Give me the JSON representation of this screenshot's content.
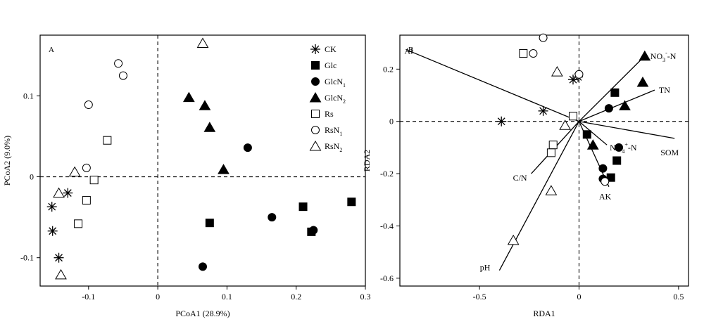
{
  "figure": {
    "panels": [
      {
        "id": "A",
        "label": "A",
        "xlabel": "PCoA1 (28.9%)",
        "ylabel": "PCoA2 (9.0%)"
      },
      {
        "id": "B",
        "label": "B",
        "xlabel": "RDA1",
        "ylabel": "RDA2"
      }
    ]
  },
  "legend": [
    {
      "name": "CK",
      "sub": "",
      "marker": "asterisk"
    },
    {
      "name": "Glc",
      "sub": "",
      "marker": "square-filled"
    },
    {
      "name": "GlcN",
      "sub": "1",
      "marker": "circle-filled"
    },
    {
      "name": "GlcN",
      "sub": "2",
      "marker": "triangle-filled"
    },
    {
      "name": "Rs",
      "sub": "",
      "marker": "square-open"
    },
    {
      "name": "RsN",
      "sub": "1",
      "marker": "circle-open"
    },
    {
      "name": "RsN",
      "sub": "2",
      "marker": "triangle-open"
    }
  ],
  "chart_data": [
    {
      "id": "A",
      "type": "scatter",
      "title": "A",
      "xlabel": "PCoA1 (28.9%)",
      "ylabel": "PCoA2 (9.0%)",
      "xlim": [
        -0.17,
        0.3
      ],
      "ylim": [
        -0.135,
        0.175
      ],
      "xticks": [
        -0.1,
        0,
        0.1,
        0.2,
        0.3
      ],
      "xtick_labels": [
        "-0.1",
        "0",
        "0.1",
        "0.2",
        "0.3"
      ],
      "yticks": [
        -0.1,
        0,
        0.1
      ],
      "ytick_labels": [
        "-0.1",
        "0",
        "0.1"
      ],
      "reference_lines": {
        "x": 0,
        "y": 0,
        "style": "dashed"
      },
      "legend_position": "top-right",
      "series": [
        {
          "name": "CK",
          "marker": "asterisk",
          "points": [
            [
              -0.13,
              -0.02
            ],
            [
              -0.153,
              -0.037
            ],
            [
              -0.152,
              -0.067
            ],
            [
              -0.143,
              -0.1
            ]
          ]
        },
        {
          "name": "Glc",
          "marker": "square-filled",
          "points": [
            [
              0.075,
              -0.057
            ],
            [
              0.21,
              -0.037
            ],
            [
              0.222,
              -0.068
            ],
            [
              0.28,
              -0.031
            ]
          ]
        },
        {
          "name": "GlcN1",
          "marker": "circle-filled",
          "points": [
            [
              0.13,
              0.036
            ],
            [
              0.165,
              -0.05
            ],
            [
              0.225,
              -0.066
            ],
            [
              0.065,
              -0.111
            ]
          ]
        },
        {
          "name": "GlcN2",
          "marker": "triangle-filled",
          "points": [
            [
              0.045,
              0.098
            ],
            [
              0.068,
              0.088
            ],
            [
              0.075,
              0.061
            ],
            [
              0.095,
              0.009
            ]
          ]
        },
        {
          "name": "Rs",
          "marker": "square-open",
          "points": [
            [
              -0.073,
              0.045
            ],
            [
              -0.092,
              -0.004
            ],
            [
              -0.103,
              -0.029
            ],
            [
              -0.115,
              -0.058
            ]
          ]
        },
        {
          "name": "RsN1",
          "marker": "circle-open",
          "points": [
            [
              -0.057,
              0.14
            ],
            [
              -0.05,
              0.125
            ],
            [
              -0.1,
              0.089
            ],
            [
              -0.103,
              0.011
            ]
          ]
        },
        {
          "name": "RsN2",
          "marker": "triangle-open",
          "points": [
            [
              0.065,
              0.165
            ],
            [
              -0.12,
              0.006
            ],
            [
              -0.143,
              -0.02
            ],
            [
              -0.14,
              -0.121
            ]
          ]
        }
      ]
    },
    {
      "id": "B",
      "type": "scatter",
      "title": "B",
      "xlabel": "RDA1",
      "ylabel": "RDA2",
      "xlim": [
        -0.9,
        0.55
      ],
      "ylim": [
        -0.63,
        0.33
      ],
      "xticks": [
        -0.5,
        0,
        0.5
      ],
      "xtick_labels": [
        "-0.5",
        "0",
        "0.5"
      ],
      "yticks": [
        -0.6,
        -0.4,
        -0.2,
        0,
        0.2
      ],
      "ytick_labels": [
        "-0.6",
        "-0.4",
        "-0.2",
        "0",
        "0.2"
      ],
      "reference_lines": {
        "x": 0,
        "y": 0,
        "style": "dashed"
      },
      "vectors": [
        {
          "name": "Al",
          "x": -0.87,
          "y": 0.275
        },
        {
          "name": "NO3-N",
          "label": "NO",
          "sub": "3",
          "sup": "-",
          "suffix": "-N",
          "x": 0.33,
          "y": 0.25
        },
        {
          "name": "TN",
          "x": 0.38,
          "y": 0.12
        },
        {
          "name": "NH4+-N",
          "label": "NH",
          "sub": "4",
          "sup": "+",
          "suffix": "-N",
          "x": 0.14,
          "y": -0.09
        },
        {
          "name": "SOM",
          "x": 0.48,
          "y": -0.065
        },
        {
          "name": "AK",
          "x": 0.15,
          "y": -0.25
        },
        {
          "name": "C/N",
          "x": -0.24,
          "y": -0.2
        },
        {
          "name": "pH",
          "x": -0.4,
          "y": -0.57
        }
      ],
      "series": [
        {
          "name": "CK",
          "marker": "asterisk",
          "points": [
            [
              -0.39,
              0.0
            ],
            [
              -0.18,
              0.04
            ],
            [
              -0.03,
              0.16
            ],
            [
              -0.005,
              0.17
            ]
          ]
        },
        {
          "name": "Glc",
          "marker": "square-filled",
          "points": [
            [
              0.18,
              0.11
            ],
            [
              0.04,
              -0.05
            ],
            [
              0.19,
              -0.15
            ],
            [
              0.16,
              -0.215
            ]
          ]
        },
        {
          "name": "GlcN1",
          "marker": "circle-filled",
          "points": [
            [
              0.15,
              0.05
            ],
            [
              0.2,
              -0.1
            ],
            [
              0.12,
              -0.18
            ],
            [
              0.12,
              -0.22
            ]
          ]
        },
        {
          "name": "GlcN2",
          "marker": "triangle-filled",
          "points": [
            [
              0.33,
              0.25
            ],
            [
              0.32,
              0.15
            ],
            [
              0.23,
              0.06
            ],
            [
              0.07,
              -0.09
            ]
          ]
        },
        {
          "name": "Rs",
          "marker": "square-open",
          "points": [
            [
              -0.28,
              0.26
            ],
            [
              -0.03,
              0.02
            ],
            [
              -0.13,
              -0.09
            ],
            [
              -0.14,
              -0.12
            ]
          ]
        },
        {
          "name": "RsN1",
          "marker": "circle-open",
          "points": [
            [
              -0.18,
              0.32
            ],
            [
              -0.23,
              0.26
            ],
            [
              0.0,
              0.18
            ],
            [
              0.13,
              -0.23
            ]
          ]
        },
        {
          "name": "RsN2",
          "marker": "triangle-open",
          "points": [
            [
              -0.11,
              0.19
            ],
            [
              -0.07,
              -0.015
            ],
            [
              -0.14,
              -0.265
            ],
            [
              -0.33,
              -0.455
            ]
          ]
        }
      ]
    }
  ]
}
